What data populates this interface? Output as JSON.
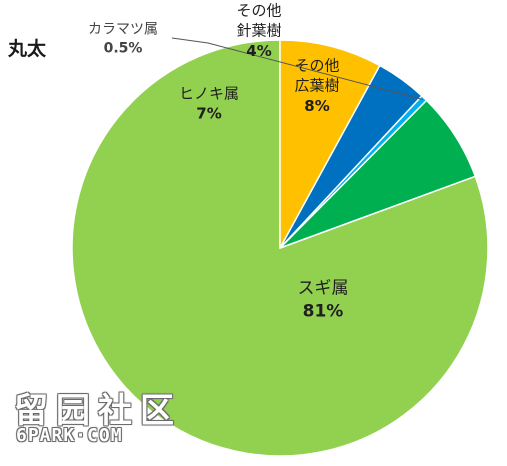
{
  "chart_data": {
    "type": "pie",
    "title": "丸太",
    "slices": [
      {
        "label_lines": [
          "スギ属"
        ],
        "value_label": "81%",
        "value": 81,
        "color": "#92d050"
      },
      {
        "label_lines": [
          "ヒノキ属"
        ],
        "value_label": "7%",
        "value": 7,
        "color": "#00b050"
      },
      {
        "label_lines": [
          "カラマツ属"
        ],
        "value_label": "0.5%",
        "value": 0.5,
        "color": "#00b0f0"
      },
      {
        "label_lines": [
          "その他",
          "針葉樹"
        ],
        "value_label": "4%",
        "value": 4,
        "color": "#0070c0"
      },
      {
        "label_lines": [
          "その他",
          "広葉樹"
        ],
        "value_label": "8%",
        "value": 8,
        "color": "#ffc000"
      }
    ],
    "start": "12 o'clock",
    "direction": "counterclockwise"
  },
  "watermark": {
    "text_cjk": "留园社区",
    "text_latin": "6PARK·COM"
  }
}
